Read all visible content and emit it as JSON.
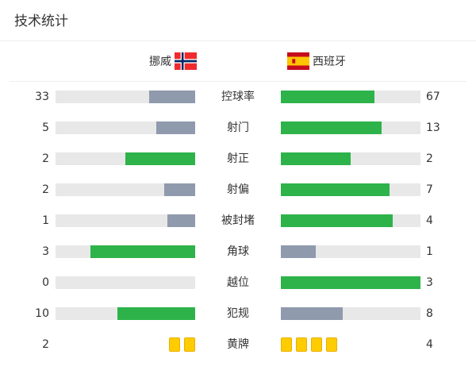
{
  "title": "技术统计",
  "teams": {
    "home": {
      "name": "挪威",
      "flag": "norway-flag"
    },
    "away": {
      "name": "西班牙",
      "flag": "spain-flag"
    }
  },
  "colors": {
    "leader": "#2db34a",
    "other": "#8f9aad",
    "track": "#e8e8e8",
    "card": "#ffcc00"
  },
  "stats": [
    {
      "label": "控球率",
      "home": 33,
      "away": 67
    },
    {
      "label": "射门",
      "home": 5,
      "away": 13
    },
    {
      "label": "射正",
      "home": 2,
      "away": 2
    },
    {
      "label": "射偏",
      "home": 2,
      "away": 7
    },
    {
      "label": "被封堵",
      "home": 1,
      "away": 4
    },
    {
      "label": "角球",
      "home": 3,
      "away": 1
    },
    {
      "label": "越位",
      "home": 0,
      "away": 3
    },
    {
      "label": "犯规",
      "home": 10,
      "away": 8
    },
    {
      "label": "黄牌",
      "home": 2,
      "away": 4,
      "cards": true
    }
  ]
}
